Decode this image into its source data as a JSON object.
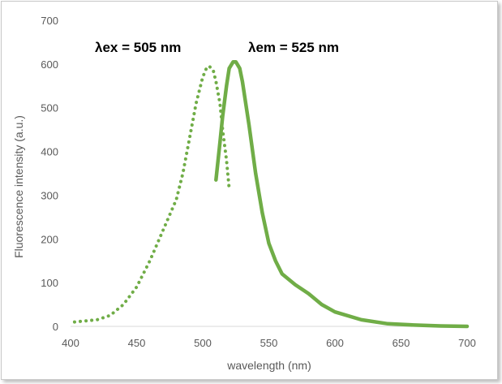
{
  "chart_data": {
    "type": "line",
    "title": "",
    "xlabel": "wavelength (nm)",
    "ylabel": "Fluorescence intensity (a.u.)",
    "xlim": [
      400,
      700
    ],
    "ylim": [
      0,
      700
    ],
    "xticks": [
      400,
      450,
      500,
      550,
      600,
      650,
      700
    ],
    "yticks": [
      0,
      100,
      200,
      300,
      400,
      500,
      600,
      700
    ],
    "grid": false,
    "legend": "none",
    "color": "#70ad47",
    "series": [
      {
        "style": "dotted",
        "x": [
          403,
          410,
          420,
          430,
          440,
          450,
          460,
          470,
          480,
          485,
          490,
          495,
          500,
          503,
          505,
          508,
          510,
          513,
          515,
          518,
          520
        ],
        "y": [
          10,
          12,
          15,
          25,
          50,
          90,
          150,
          220,
          290,
          350,
          430,
          510,
          570,
          592,
          595,
          585,
          560,
          510,
          450,
          380,
          315
        ]
      },
      {
        "style": "solid",
        "x": [
          510,
          513,
          515,
          518,
          520,
          523,
          525,
          528,
          530,
          535,
          540,
          545,
          550,
          555,
          560,
          570,
          580,
          590,
          600,
          620,
          640,
          660,
          680,
          700
        ],
        "y": [
          335,
          420,
          480,
          550,
          590,
          605,
          605,
          590,
          560,
          460,
          350,
          260,
          190,
          150,
          120,
          95,
          75,
          50,
          33,
          15,
          6,
          3,
          1,
          0
        ]
      }
    ],
    "annotations": [
      {
        "text": "λex = 505 nm"
      },
      {
        "text": "λem = 525 nm"
      }
    ]
  }
}
